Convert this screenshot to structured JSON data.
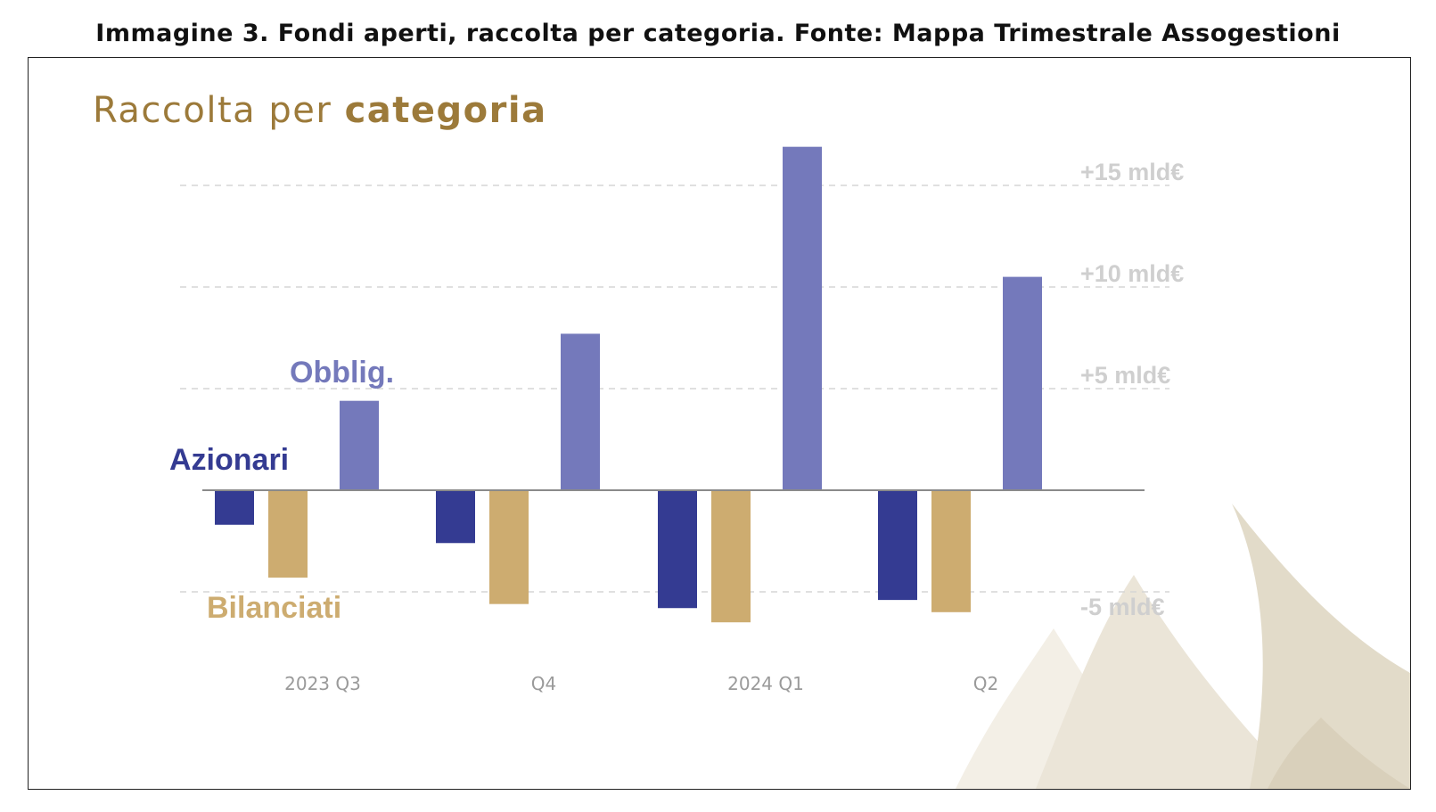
{
  "caption": "Immagine 3. Fondi aperti, raccolta per categoria. Fonte: Mappa Trimestrale Assogestioni",
  "chart_data": {
    "type": "bar",
    "title_regular": "Raccolta per",
    "title_bold": "categoria",
    "categories": [
      "2023 Q3",
      "Q4",
      "2024 Q1",
      "Q2"
    ],
    "series": [
      {
        "name": "Azionari",
        "color": "#343b92",
        "values": [
          -1.7,
          -2.6,
          -5.8,
          -5.4
        ]
      },
      {
        "name": "Bilanciati",
        "color": "#cdac70",
        "values": [
          -4.3,
          -5.6,
          -6.5,
          -6.0
        ]
      },
      {
        "name": "Obblig.",
        "color": "#7479bb",
        "values": [
          4.4,
          7.7,
          16.9,
          10.5
        ]
      }
    ],
    "ylim": [
      -6.5,
      17
    ],
    "gridlines": [
      15,
      10,
      5,
      -5
    ],
    "tick_labels": [
      "+15 mld€",
      "+10 mld€",
      "+5 mld€",
      "-5 mld€"
    ],
    "grid": true,
    "ylabel": "",
    "xlabel": ""
  }
}
